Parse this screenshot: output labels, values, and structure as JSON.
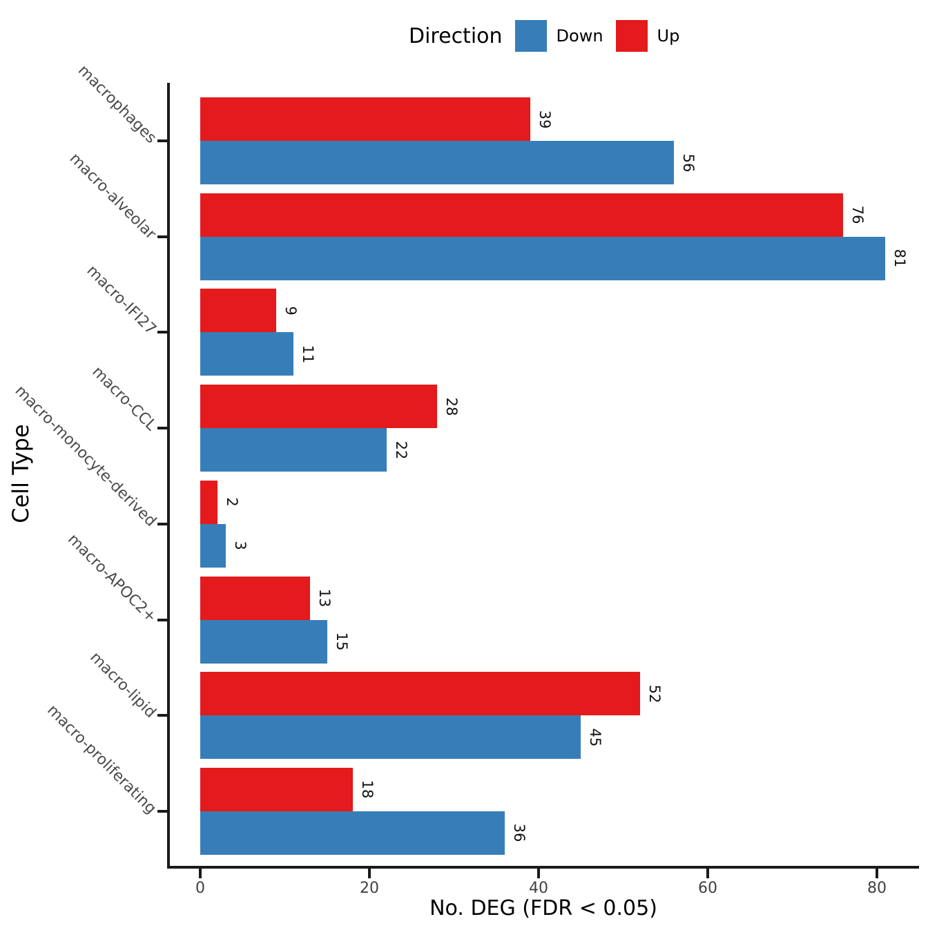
{
  "legend": {
    "title": "Direction",
    "items": [
      {
        "key": "down",
        "label": "Down"
      },
      {
        "key": "up",
        "label": "Up"
      }
    ]
  },
  "axes": {
    "x_title": "No. DEG (FDR < 0.05)",
    "y_title": "Cell Type"
  },
  "chart_data": {
    "type": "bar",
    "orientation": "horizontal",
    "title": "",
    "xlabel": "No. DEG (FDR < 0.05)",
    "ylabel": "Cell Type",
    "categories": [
      "macrophages",
      "macro-alveolar",
      "macro-IFI27",
      "macro-CCL",
      "macro-monocyte-derived",
      "macro-APOC2+",
      "macro-lipid",
      "macro-proliferating"
    ],
    "series": [
      {
        "name": "Up",
        "color": "#E41A1C",
        "values": [
          39,
          76,
          9,
          28,
          2,
          13,
          52,
          18
        ]
      },
      {
        "name": "Down",
        "color": "#377EB8",
        "values": [
          56,
          81,
          11,
          22,
          3,
          15,
          45,
          36
        ]
      }
    ],
    "colors": {
      "down": "#377EB8",
      "up": "#E41A1C"
    },
    "value_labels": true,
    "x_ticks": [
      0,
      20,
      40,
      60,
      80
    ],
    "xlim": [
      0,
      85
    ],
    "grid": false,
    "legend_position": "top",
    "legend_title": "Direction"
  }
}
